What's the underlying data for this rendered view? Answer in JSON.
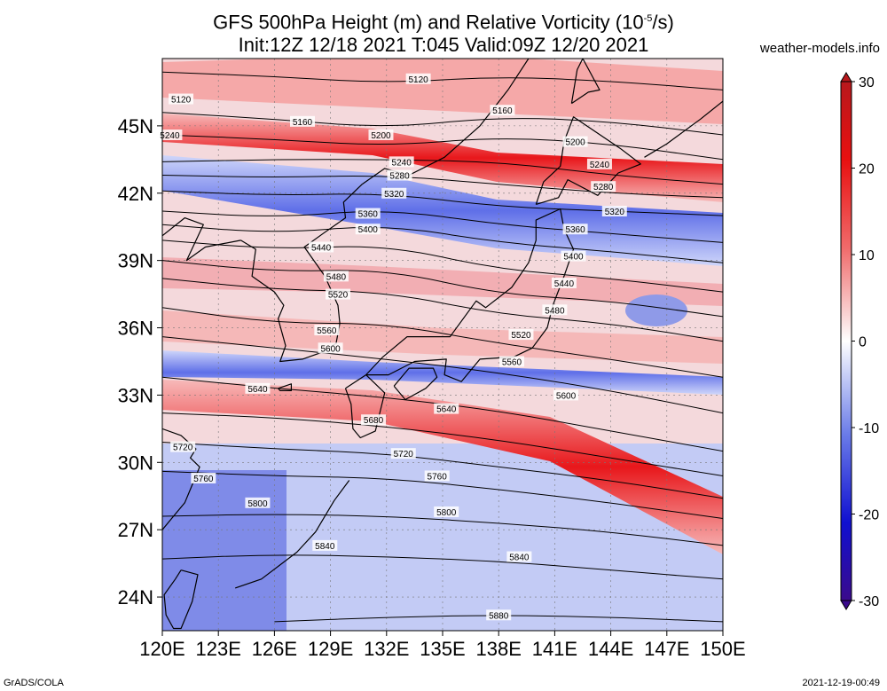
{
  "title": {
    "line1_prefix": "GFS 500hPa Height (m) and Relative Vorticity (10",
    "line1_exp": "-5",
    "line1_suffix": "/s)",
    "line2": "Init:12Z 12/18 2021 T:045 Valid:09Z 12/20 2021"
  },
  "site": "weather-models.info",
  "footer": {
    "left": "GrADS/COLA",
    "right": "2021-12-19-00:49"
  },
  "map": {
    "lon_range": [
      120,
      150
    ],
    "lat_range": [
      22.5,
      48
    ],
    "lon_ticks": [
      "120E",
      "123E",
      "126E",
      "129E",
      "132E",
      "135E",
      "138E",
      "141E",
      "144E",
      "147E",
      "150E"
    ],
    "lat_ticks": [
      "24N",
      "27N",
      "30N",
      "33N",
      "36N",
      "39N",
      "42N",
      "45N"
    ],
    "colors": {
      "positive": "#e8171b",
      "negative": "#2323d6",
      "neutral": "#ffffff",
      "contour": "#000000",
      "coast": "#000000"
    }
  },
  "colorbar": {
    "labels": [
      "30",
      "20",
      "10",
      "0",
      "-10",
      "-20",
      "-30"
    ],
    "stops": [
      "#3a0a8c",
      "#1010d0",
      "#5a72e6",
      "#c8d0f8",
      "#ffffff",
      "#f8c8c8",
      "#f06060",
      "#e81010",
      "#b8181c"
    ]
  },
  "contours": [
    {
      "label": "5120",
      "pts": [
        [
          120,
          47.4
        ],
        [
          126,
          47.2
        ],
        [
          132,
          46.9
        ],
        [
          138,
          47.2
        ],
        [
          144,
          47.0
        ],
        [
          150,
          46.6
        ]
      ]
    },
    {
      "label": "5160",
      "pts": [
        [
          120,
          45.6
        ],
        [
          126,
          45.3
        ],
        [
          132,
          44.9
        ],
        [
          138,
          45.4
        ],
        [
          144,
          45.2
        ],
        [
          150,
          44.6
        ]
      ]
    },
    {
      "label": "5200",
      "pts": [
        [
          120,
          44.6
        ],
        [
          126,
          44.4
        ],
        [
          132,
          44.1
        ],
        [
          138,
          44.5
        ],
        [
          144,
          44.2
        ],
        [
          150,
          43.5
        ]
      ]
    },
    {
      "label": "5240",
      "pts": [
        [
          120,
          43.4
        ],
        [
          126,
          43.5
        ],
        [
          132,
          43.5
        ],
        [
          138,
          43.4
        ],
        [
          144,
          42.8
        ],
        [
          150,
          42.4
        ]
      ]
    },
    {
      "label": "5280",
      "pts": [
        [
          120,
          42.8
        ],
        [
          126,
          42.7
        ],
        [
          132,
          42.8
        ],
        [
          138,
          42.4
        ],
        [
          144,
          42.0
        ],
        [
          150,
          41.8
        ]
      ]
    },
    {
      "label": "5320",
      "pts": [
        [
          120,
          42.1
        ],
        [
          126,
          41.9
        ],
        [
          132,
          42.0
        ],
        [
          138,
          41.4
        ],
        [
          144,
          41.2
        ],
        [
          150,
          41.0
        ]
      ]
    },
    {
      "label": "5360",
      "pts": [
        [
          120,
          41.2
        ],
        [
          126,
          40.9
        ],
        [
          132,
          41.3
        ],
        [
          138,
          40.6
        ],
        [
          144,
          40.2
        ],
        [
          150,
          39.8
        ]
      ]
    },
    {
      "label": "5400",
      "pts": [
        [
          120,
          40.6
        ],
        [
          126,
          40.2
        ],
        [
          132,
          40.6
        ],
        [
          138,
          39.8
        ],
        [
          144,
          39.4
        ],
        [
          150,
          38.9
        ]
      ]
    },
    {
      "label": "5440",
      "pts": [
        [
          120,
          39.9
        ],
        [
          126,
          39.5
        ],
        [
          132,
          39.7
        ],
        [
          138,
          38.6
        ],
        [
          144,
          38.2
        ],
        [
          150,
          37.6
        ]
      ]
    },
    {
      "label": "5480",
      "pts": [
        [
          120,
          39.0
        ],
        [
          126,
          38.5
        ],
        [
          132,
          38.6
        ],
        [
          138,
          37.5
        ],
        [
          144,
          37.2
        ],
        [
          150,
          36.5
        ]
      ]
    },
    {
      "label": "5520",
      "pts": [
        [
          120,
          38.2
        ],
        [
          126,
          37.7
        ],
        [
          132,
          37.6
        ],
        [
          138,
          36.6
        ],
        [
          144,
          36.2
        ],
        [
          150,
          35.4
        ]
      ]
    },
    {
      "label": "5560",
      "pts": [
        [
          120,
          36.9
        ],
        [
          126,
          36.2
        ],
        [
          132,
          36.2
        ],
        [
          138,
          35.3
        ],
        [
          144,
          34.6
        ],
        [
          150,
          33.8
        ]
      ]
    },
    {
      "label": "5600",
      "pts": [
        [
          120,
          35.6
        ],
        [
          126,
          35.1
        ],
        [
          132,
          34.6
        ],
        [
          138,
          34.0
        ],
        [
          144,
          33.2
        ],
        [
          150,
          32.2
        ]
      ]
    },
    {
      "label": "5640",
      "pts": [
        [
          120,
          33.8
        ],
        [
          126,
          33.3
        ],
        [
          132,
          32.9
        ],
        [
          138,
          32.3
        ],
        [
          144,
          31.4
        ],
        [
          150,
          30.5
        ]
      ]
    },
    {
      "label": "5680",
      "pts": [
        [
          120,
          32.2
        ],
        [
          126,
          32.0
        ],
        [
          132,
          31.6
        ],
        [
          138,
          31.0
        ],
        [
          144,
          30.2
        ],
        [
          150,
          29.4
        ]
      ]
    },
    {
      "label": "5720",
      "pts": [
        [
          120,
          30.9
        ],
        [
          126,
          30.6
        ],
        [
          132,
          30.4
        ],
        [
          138,
          29.8
        ],
        [
          144,
          29.2
        ],
        [
          150,
          28.4
        ]
      ]
    },
    {
      "label": "5760",
      "pts": [
        [
          120,
          29.6
        ],
        [
          126,
          29.4
        ],
        [
          132,
          29.3
        ],
        [
          138,
          28.8
        ],
        [
          144,
          28.2
        ],
        [
          150,
          27.5
        ]
      ]
    },
    {
      "label": "5800",
      "pts": [
        [
          120,
          27.6
        ],
        [
          126,
          27.7
        ],
        [
          132,
          27.6
        ],
        [
          138,
          27.3
        ],
        [
          144,
          26.9
        ],
        [
          150,
          26.3
        ]
      ]
    },
    {
      "label": "5840",
      "pts": [
        [
          120,
          25.7
        ],
        [
          126,
          25.9
        ],
        [
          132,
          25.8
        ],
        [
          138,
          25.6
        ],
        [
          144,
          25.2
        ],
        [
          150,
          24.8
        ]
      ]
    },
    {
      "label": "5880",
      "pts": [
        [
          126,
          22.9
        ],
        [
          132,
          23.1
        ],
        [
          138,
          23.2
        ],
        [
          144,
          23.1
        ],
        [
          150,
          22.9
        ]
      ]
    }
  ],
  "contour_labels": [
    {
      "text": "5120",
      "lon": 121.0,
      "lat": 46.2
    },
    {
      "text": "5120",
      "lon": 133.7,
      "lat": 47.1
    },
    {
      "text": "5160",
      "lon": 127.5,
      "lat": 45.2
    },
    {
      "text": "5160",
      "lon": 138.2,
      "lat": 45.7
    },
    {
      "text": "5200",
      "lon": 131.7,
      "lat": 44.6
    },
    {
      "text": "5200",
      "lon": 142.1,
      "lat": 44.3
    },
    {
      "text": "5240",
      "lon": 120.4,
      "lat": 44.6
    },
    {
      "text": "5240",
      "lon": 132.8,
      "lat": 43.4
    },
    {
      "text": "5240",
      "lon": 143.4,
      "lat": 43.3
    },
    {
      "text": "5280",
      "lon": 132.7,
      "lat": 42.8
    },
    {
      "text": "5280",
      "lon": 143.6,
      "lat": 42.3
    },
    {
      "text": "5320",
      "lon": 132.4,
      "lat": 42.0
    },
    {
      "text": "5320",
      "lon": 144.2,
      "lat": 41.2
    },
    {
      "text": "5360",
      "lon": 131.0,
      "lat": 41.1
    },
    {
      "text": "5360",
      "lon": 142.1,
      "lat": 40.4
    },
    {
      "text": "5400",
      "lon": 131.0,
      "lat": 40.4
    },
    {
      "text": "5400",
      "lon": 142.0,
      "lat": 39.2
    },
    {
      "text": "5440",
      "lon": 128.5,
      "lat": 39.6
    },
    {
      "text": "5440",
      "lon": 141.5,
      "lat": 38.0
    },
    {
      "text": "5480",
      "lon": 129.3,
      "lat": 38.3
    },
    {
      "text": "5480",
      "lon": 141.0,
      "lat": 36.8
    },
    {
      "text": "5520",
      "lon": 129.4,
      "lat": 37.5
    },
    {
      "text": "5520",
      "lon": 139.2,
      "lat": 35.7
    },
    {
      "text": "5560",
      "lon": 128.8,
      "lat": 35.9
    },
    {
      "text": "5560",
      "lon": 138.7,
      "lat": 34.5
    },
    {
      "text": "5600",
      "lon": 129.0,
      "lat": 35.1
    },
    {
      "text": "5600",
      "lon": 141.6,
      "lat": 33.0
    },
    {
      "text": "5640",
      "lon": 125.1,
      "lat": 33.3
    },
    {
      "text": "5640",
      "lon": 135.2,
      "lat": 32.4
    },
    {
      "text": "5680",
      "lon": 131.3,
      "lat": 31.9
    },
    {
      "text": "5720",
      "lon": 121.1,
      "lat": 30.7
    },
    {
      "text": "5720",
      "lon": 132.9,
      "lat": 30.4
    },
    {
      "text": "5760",
      "lon": 122.2,
      "lat": 29.3
    },
    {
      "text": "5760",
      "lon": 134.7,
      "lat": 29.4
    },
    {
      "text": "5800",
      "lon": 125.1,
      "lat": 28.2
    },
    {
      "text": "5800",
      "lon": 135.2,
      "lat": 27.8
    },
    {
      "text": "5840",
      "lon": 128.7,
      "lat": 26.3
    },
    {
      "text": "5840",
      "lon": 139.1,
      "lat": 25.8
    },
    {
      "text": "5880",
      "lon": 138.0,
      "lat": 23.2
    }
  ],
  "coastlines": [
    {
      "name": "china-coast",
      "pts": [
        [
          120,
          31.5
        ],
        [
          121,
          31.2
        ],
        [
          121.8,
          30.6
        ],
        [
          121.5,
          30.2
        ],
        [
          122,
          29.8
        ],
        [
          121.6,
          29.0
        ],
        [
          121.2,
          28.2
        ],
        [
          120.6,
          27.6
        ],
        [
          120.0,
          27.0
        ]
      ]
    },
    {
      "name": "taiwan",
      "pts": [
        [
          121.0,
          25.2
        ],
        [
          121.9,
          25.0
        ],
        [
          121.6,
          23.8
        ],
        [
          121.0,
          22.6
        ],
        [
          120.6,
          22.6
        ],
        [
          120.2,
          23.2
        ],
        [
          120.1,
          24.1
        ],
        [
          120.7,
          24.8
        ],
        [
          121.0,
          25.2
        ]
      ]
    },
    {
      "name": "bohai-liaodong",
      "pts": [
        [
          120,
          40.1
        ],
        [
          121.2,
          40.9
        ],
        [
          122.2,
          40.6
        ],
        [
          121.3,
          39.0
        ],
        [
          122.3,
          39.6
        ],
        [
          124.2,
          39.9
        ]
      ]
    },
    {
      "name": "korea",
      "pts": [
        [
          124.2,
          39.9
        ],
        [
          125.0,
          39.5
        ],
        [
          124.8,
          38.3
        ],
        [
          126.0,
          37.6
        ],
        [
          126.5,
          37.0
        ],
        [
          126.2,
          36.4
        ],
        [
          126.6,
          35.2
        ],
        [
          126.3,
          34.5
        ],
        [
          127.5,
          34.6
        ],
        [
          128.5,
          34.9
        ],
        [
          129.3,
          35.3
        ],
        [
          129.5,
          36.2
        ],
        [
          129.4,
          37.0
        ],
        [
          128.7,
          38.3
        ],
        [
          127.6,
          39.6
        ],
        [
          128.6,
          40.2
        ],
        [
          129.8,
          40.9
        ],
        [
          129.7,
          41.6
        ],
        [
          130.7,
          42.4
        ]
      ]
    },
    {
      "name": "jeju",
      "pts": [
        [
          126.2,
          33.3
        ],
        [
          126.9,
          33.5
        ],
        [
          126.9,
          33.2
        ],
        [
          126.3,
          33.2
        ],
        [
          126.2,
          33.3
        ]
      ]
    },
    {
      "name": "russia-coast",
      "pts": [
        [
          130.7,
          42.4
        ],
        [
          131.9,
          43.1
        ],
        [
          133.2,
          42.8
        ],
        [
          135.1,
          43.6
        ],
        [
          137.0,
          45.0
        ],
        [
          138.5,
          46.6
        ],
        [
          139.6,
          48.0
        ]
      ]
    },
    {
      "name": "kyushu",
      "pts": [
        [
          129.8,
          33.3
        ],
        [
          130.9,
          33.9
        ],
        [
          131.9,
          33.1
        ],
        [
          131.4,
          31.4
        ],
        [
          130.6,
          31.1
        ],
        [
          130.2,
          31.5
        ],
        [
          130.1,
          32.6
        ],
        [
          129.8,
          33.3
        ]
      ]
    },
    {
      "name": "shikoku",
      "pts": [
        [
          132.4,
          33.4
        ],
        [
          133.2,
          34.2
        ],
        [
          134.5,
          34.2
        ],
        [
          134.7,
          33.8
        ],
        [
          134.1,
          33.3
        ],
        [
          133.0,
          32.8
        ],
        [
          132.4,
          33.4
        ]
      ]
    },
    {
      "name": "honshu",
      "pts": [
        [
          130.9,
          33.9
        ],
        [
          131.8,
          34.7
        ],
        [
          133.1,
          35.6
        ],
        [
          135.4,
          35.6
        ],
        [
          136.8,
          37.2
        ],
        [
          137.3,
          36.9
        ],
        [
          138.7,
          37.8
        ],
        [
          139.6,
          38.9
        ],
        [
          140.0,
          39.9
        ],
        [
          140.0,
          40.8
        ],
        [
          141.3,
          41.3
        ],
        [
          141.5,
          40.4
        ],
        [
          142.0,
          39.5
        ],
        [
          141.5,
          38.3
        ],
        [
          140.9,
          37.0
        ],
        [
          140.6,
          36.0
        ],
        [
          139.8,
          35.1
        ],
        [
          138.8,
          34.7
        ],
        [
          137.0,
          34.6
        ],
        [
          136.0,
          33.6
        ],
        [
          135.1,
          33.9
        ],
        [
          135.2,
          34.6
        ],
        [
          133.5,
          34.5
        ],
        [
          132.1,
          33.9
        ],
        [
          130.9,
          33.9
        ]
      ]
    },
    {
      "name": "hokkaido",
      "pts": [
        [
          140.0,
          41.5
        ],
        [
          141.2,
          41.8
        ],
        [
          141.7,
          42.6
        ],
        [
          143.3,
          41.9
        ],
        [
          144.4,
          42.9
        ],
        [
          145.6,
          43.3
        ],
        [
          144.5,
          44.0
        ],
        [
          142.0,
          45.4
        ],
        [
          141.5,
          44.3
        ],
        [
          141.3,
          43.2
        ],
        [
          140.4,
          42.5
        ],
        [
          140.0,
          41.5
        ]
      ]
    },
    {
      "name": "sakhalin",
      "pts": [
        [
          141.9,
          46.0
        ],
        [
          142.2,
          47.5
        ],
        [
          142.5,
          48.0
        ],
        [
          143.4,
          46.6
        ],
        [
          142.8,
          46.5
        ],
        [
          141.9,
          46.0
        ]
      ]
    },
    {
      "name": "kuril-islands",
      "pts": [
        [
          145.8,
          43.6
        ],
        [
          147.0,
          44.2
        ],
        [
          148.8,
          45.3
        ],
        [
          150.0,
          46.1
        ]
      ]
    },
    {
      "name": "ryukyu-islands",
      "pts": [
        [
          130.0,
          29.2
        ],
        [
          129.2,
          28.3
        ],
        [
          128.2,
          26.9
        ],
        [
          127.2,
          26.0
        ],
        [
          125.3,
          24.8
        ],
        [
          123.9,
          24.4
        ]
      ]
    }
  ]
}
